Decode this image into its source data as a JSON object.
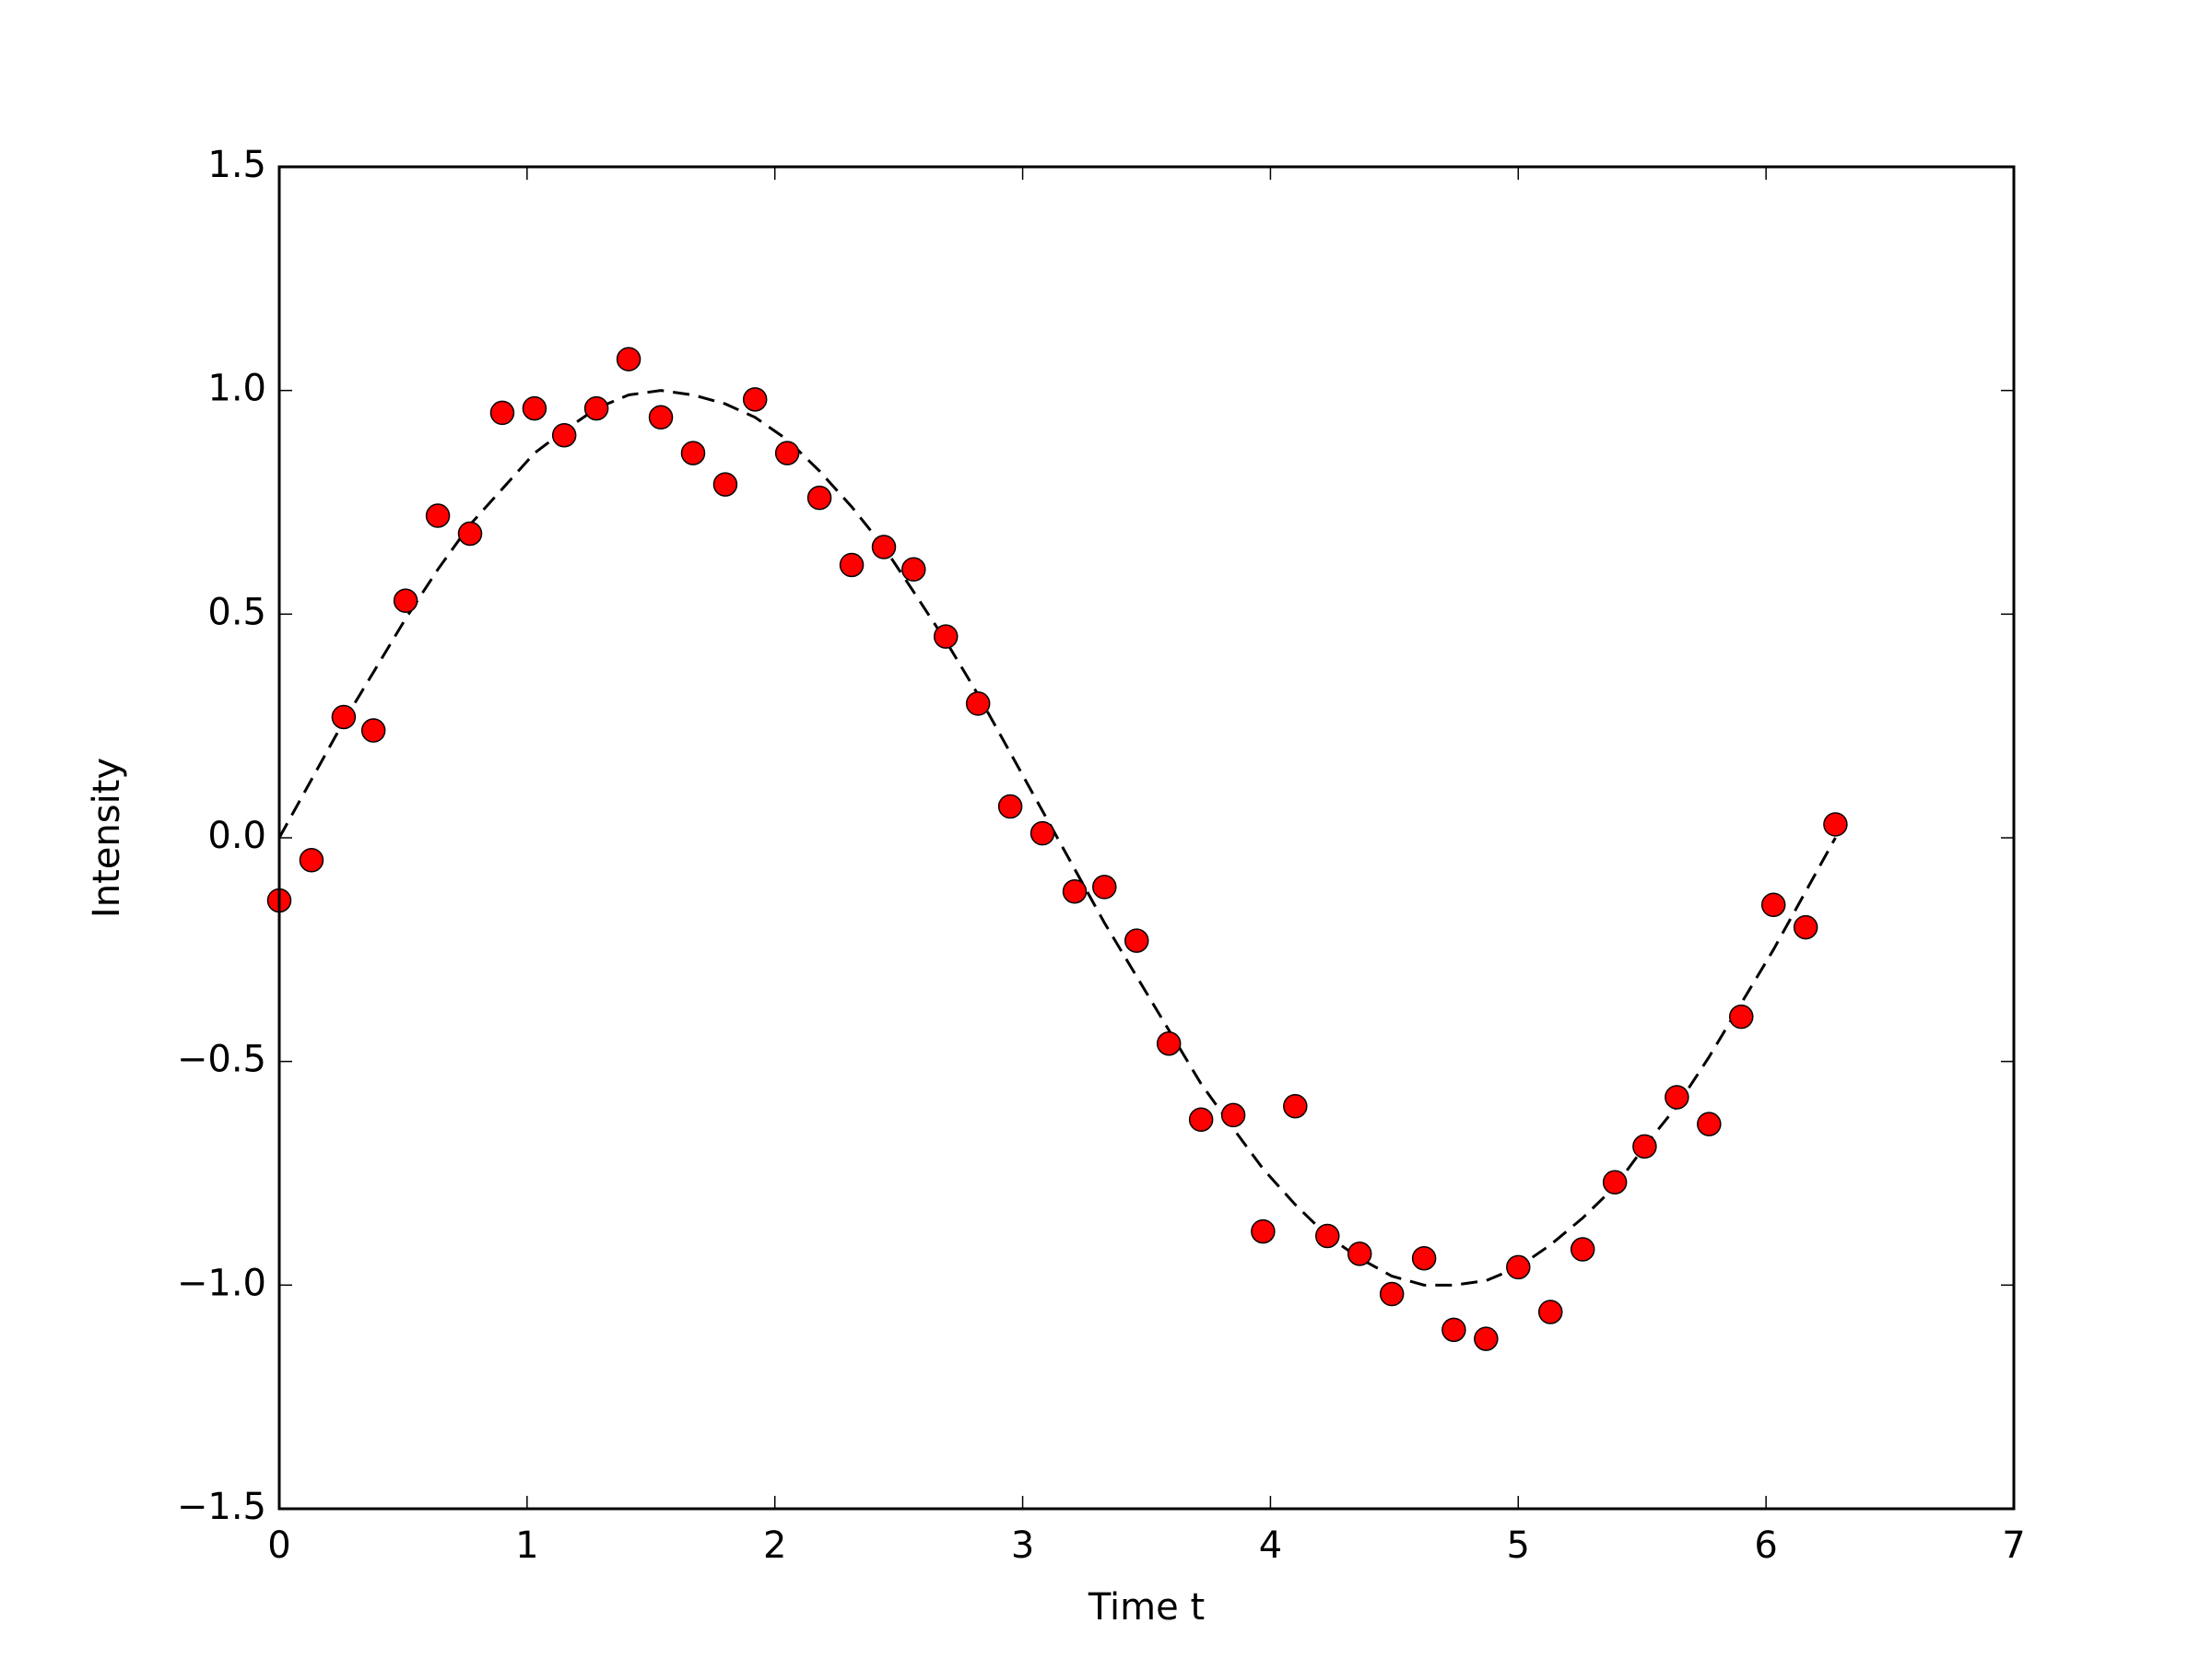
{
  "chart_data": {
    "type": "scatter",
    "xlabel": "Time t",
    "ylabel": "Intensity",
    "xlim": [
      0,
      7
    ],
    "xticks": [
      0,
      1,
      2,
      3,
      4,
      5,
      6,
      7
    ],
    "ylim": [
      -1.5,
      1.5
    ],
    "yticks": [
      {
        "value": -1.5,
        "label": "−1.5"
      },
      {
        "value": -1.0,
        "label": "−1.0"
      },
      {
        "value": -0.5,
        "label": "−0.5"
      },
      {
        "value": 0,
        "label": "0.0"
      },
      0.5,
      {
        "value": 1.0,
        "label": "1.0"
      },
      1.5
    ],
    "grid": false,
    "series": [
      {
        "kind": "line",
        "dashed": true,
        "color": "#000000",
        "x": [
          0,
          0.13,
          0.26,
          0.38,
          0.51,
          0.64,
          0.77,
          0.9,
          1.03,
          1.15,
          1.28,
          1.41,
          1.54,
          1.67,
          1.8,
          1.92,
          2.05,
          2.18,
          2.31,
          2.44,
          2.56,
          2.69,
          2.82,
          2.95,
          3.08,
          3.21,
          3.33,
          3.46,
          3.59,
          3.72,
          3.85,
          3.97,
          4.1,
          4.23,
          4.36,
          4.49,
          4.62,
          4.74,
          4.87,
          5.0,
          5.13,
          5.26,
          5.39,
          5.51,
          5.64,
          5.77,
          5.9,
          6.03,
          6.16,
          6.28
        ],
        "values": [
          0,
          0.13,
          0.26,
          0.37,
          0.49,
          0.6,
          0.7,
          0.78,
          0.86,
          0.91,
          0.96,
          0.99,
          1.0,
          0.99,
          0.97,
          0.94,
          0.89,
          0.82,
          0.74,
          0.65,
          0.55,
          0.44,
          0.32,
          0.19,
          0.06,
          -0.07,
          -0.19,
          -0.31,
          -0.43,
          -0.55,
          -0.65,
          -0.74,
          -0.82,
          -0.89,
          -0.94,
          -0.98,
          -1.0,
          -1.0,
          -0.99,
          -0.96,
          -0.91,
          -0.85,
          -0.78,
          -0.69,
          -0.6,
          -0.49,
          -0.37,
          -0.25,
          -0.12,
          0.0
        ]
      },
      {
        "kind": "scatter",
        "color": "#ff0000",
        "x": [
          0,
          0.13,
          0.26,
          0.38,
          0.51,
          0.64,
          0.77,
          0.9,
          1.03,
          1.15,
          1.28,
          1.41,
          1.54,
          1.67,
          1.8,
          1.92,
          2.05,
          2.18,
          2.31,
          2.44,
          2.56,
          2.69,
          2.82,
          2.95,
          3.08,
          3.21,
          3.33,
          3.46,
          3.59,
          3.72,
          3.85,
          3.97,
          4.1,
          4.23,
          4.36,
          4.49,
          4.62,
          4.74,
          4.87,
          5.0,
          5.13,
          5.26,
          5.39,
          5.51,
          5.64,
          5.77,
          5.9,
          6.03,
          6.16,
          6.28
        ],
        "values": [
          -0.14,
          -0.05,
          0.27,
          0.24,
          0.53,
          0.72,
          0.68,
          0.95,
          0.96,
          0.9,
          0.96,
          1.07,
          0.94,
          0.86,
          0.79,
          0.98,
          0.86,
          0.76,
          0.61,
          0.65,
          0.6,
          0.45,
          0.3,
          0.07,
          0.01,
          -0.12,
          -0.11,
          -0.23,
          -0.46,
          -0.63,
          -0.62,
          -0.88,
          -0.6,
          -0.89,
          -0.93,
          -1.02,
          -0.94,
          -1.1,
          -1.12,
          -0.96,
          -1.06,
          -0.92,
          -0.77,
          -0.69,
          -0.58,
          -0.64,
          -0.4,
          -0.15,
          -0.2,
          0.03
        ]
      }
    ]
  }
}
